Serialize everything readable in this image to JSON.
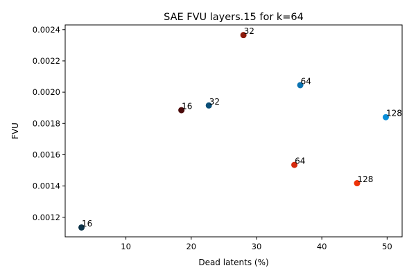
{
  "chart_data": {
    "type": "scatter",
    "title": "SAE FVU layers.15 for k=64",
    "xlabel": "Dead latents (%)",
    "ylabel": "FVU",
    "xlim": [
      0.7,
      52.3
    ],
    "ylim": [
      0.001075,
      0.00243
    ],
    "x_ticks": [
      10,
      20,
      30,
      40,
      50
    ],
    "x_tick_labels": [
      "10",
      "20",
      "30",
      "40",
      "50"
    ],
    "y_ticks": [
      0.0012,
      0.0014,
      0.0016,
      0.0018,
      0.002,
      0.0022,
      0.0024
    ],
    "y_tick_labels": [
      "0.0012",
      "0.0014",
      "0.0016",
      "0.0018",
      "0.0020",
      "0.0022",
      "0.0024"
    ],
    "grid": false,
    "points": [
      {
        "x": 3.2,
        "y": 0.001135,
        "label": "16",
        "color": "#0c3349"
      },
      {
        "x": 22.7,
        "y": 0.001915,
        "label": "32",
        "color": "#0b4f78"
      },
      {
        "x": 36.7,
        "y": 0.002045,
        "label": "64",
        "color": "#0a73b2"
      },
      {
        "x": 49.8,
        "y": 0.00184,
        "label": "128",
        "color": "#0a8fd9"
      },
      {
        "x": 18.5,
        "y": 0.001885,
        "label": "16",
        "color": "#4a0a0a"
      },
      {
        "x": 28.0,
        "y": 0.002365,
        "label": "32",
        "color": "#8c1a0b"
      },
      {
        "x": 35.8,
        "y": 0.001535,
        "label": "64",
        "color": "#d52a0d"
      },
      {
        "x": 45.4,
        "y": 0.001418,
        "label": "128",
        "color": "#ee3309"
      }
    ]
  }
}
